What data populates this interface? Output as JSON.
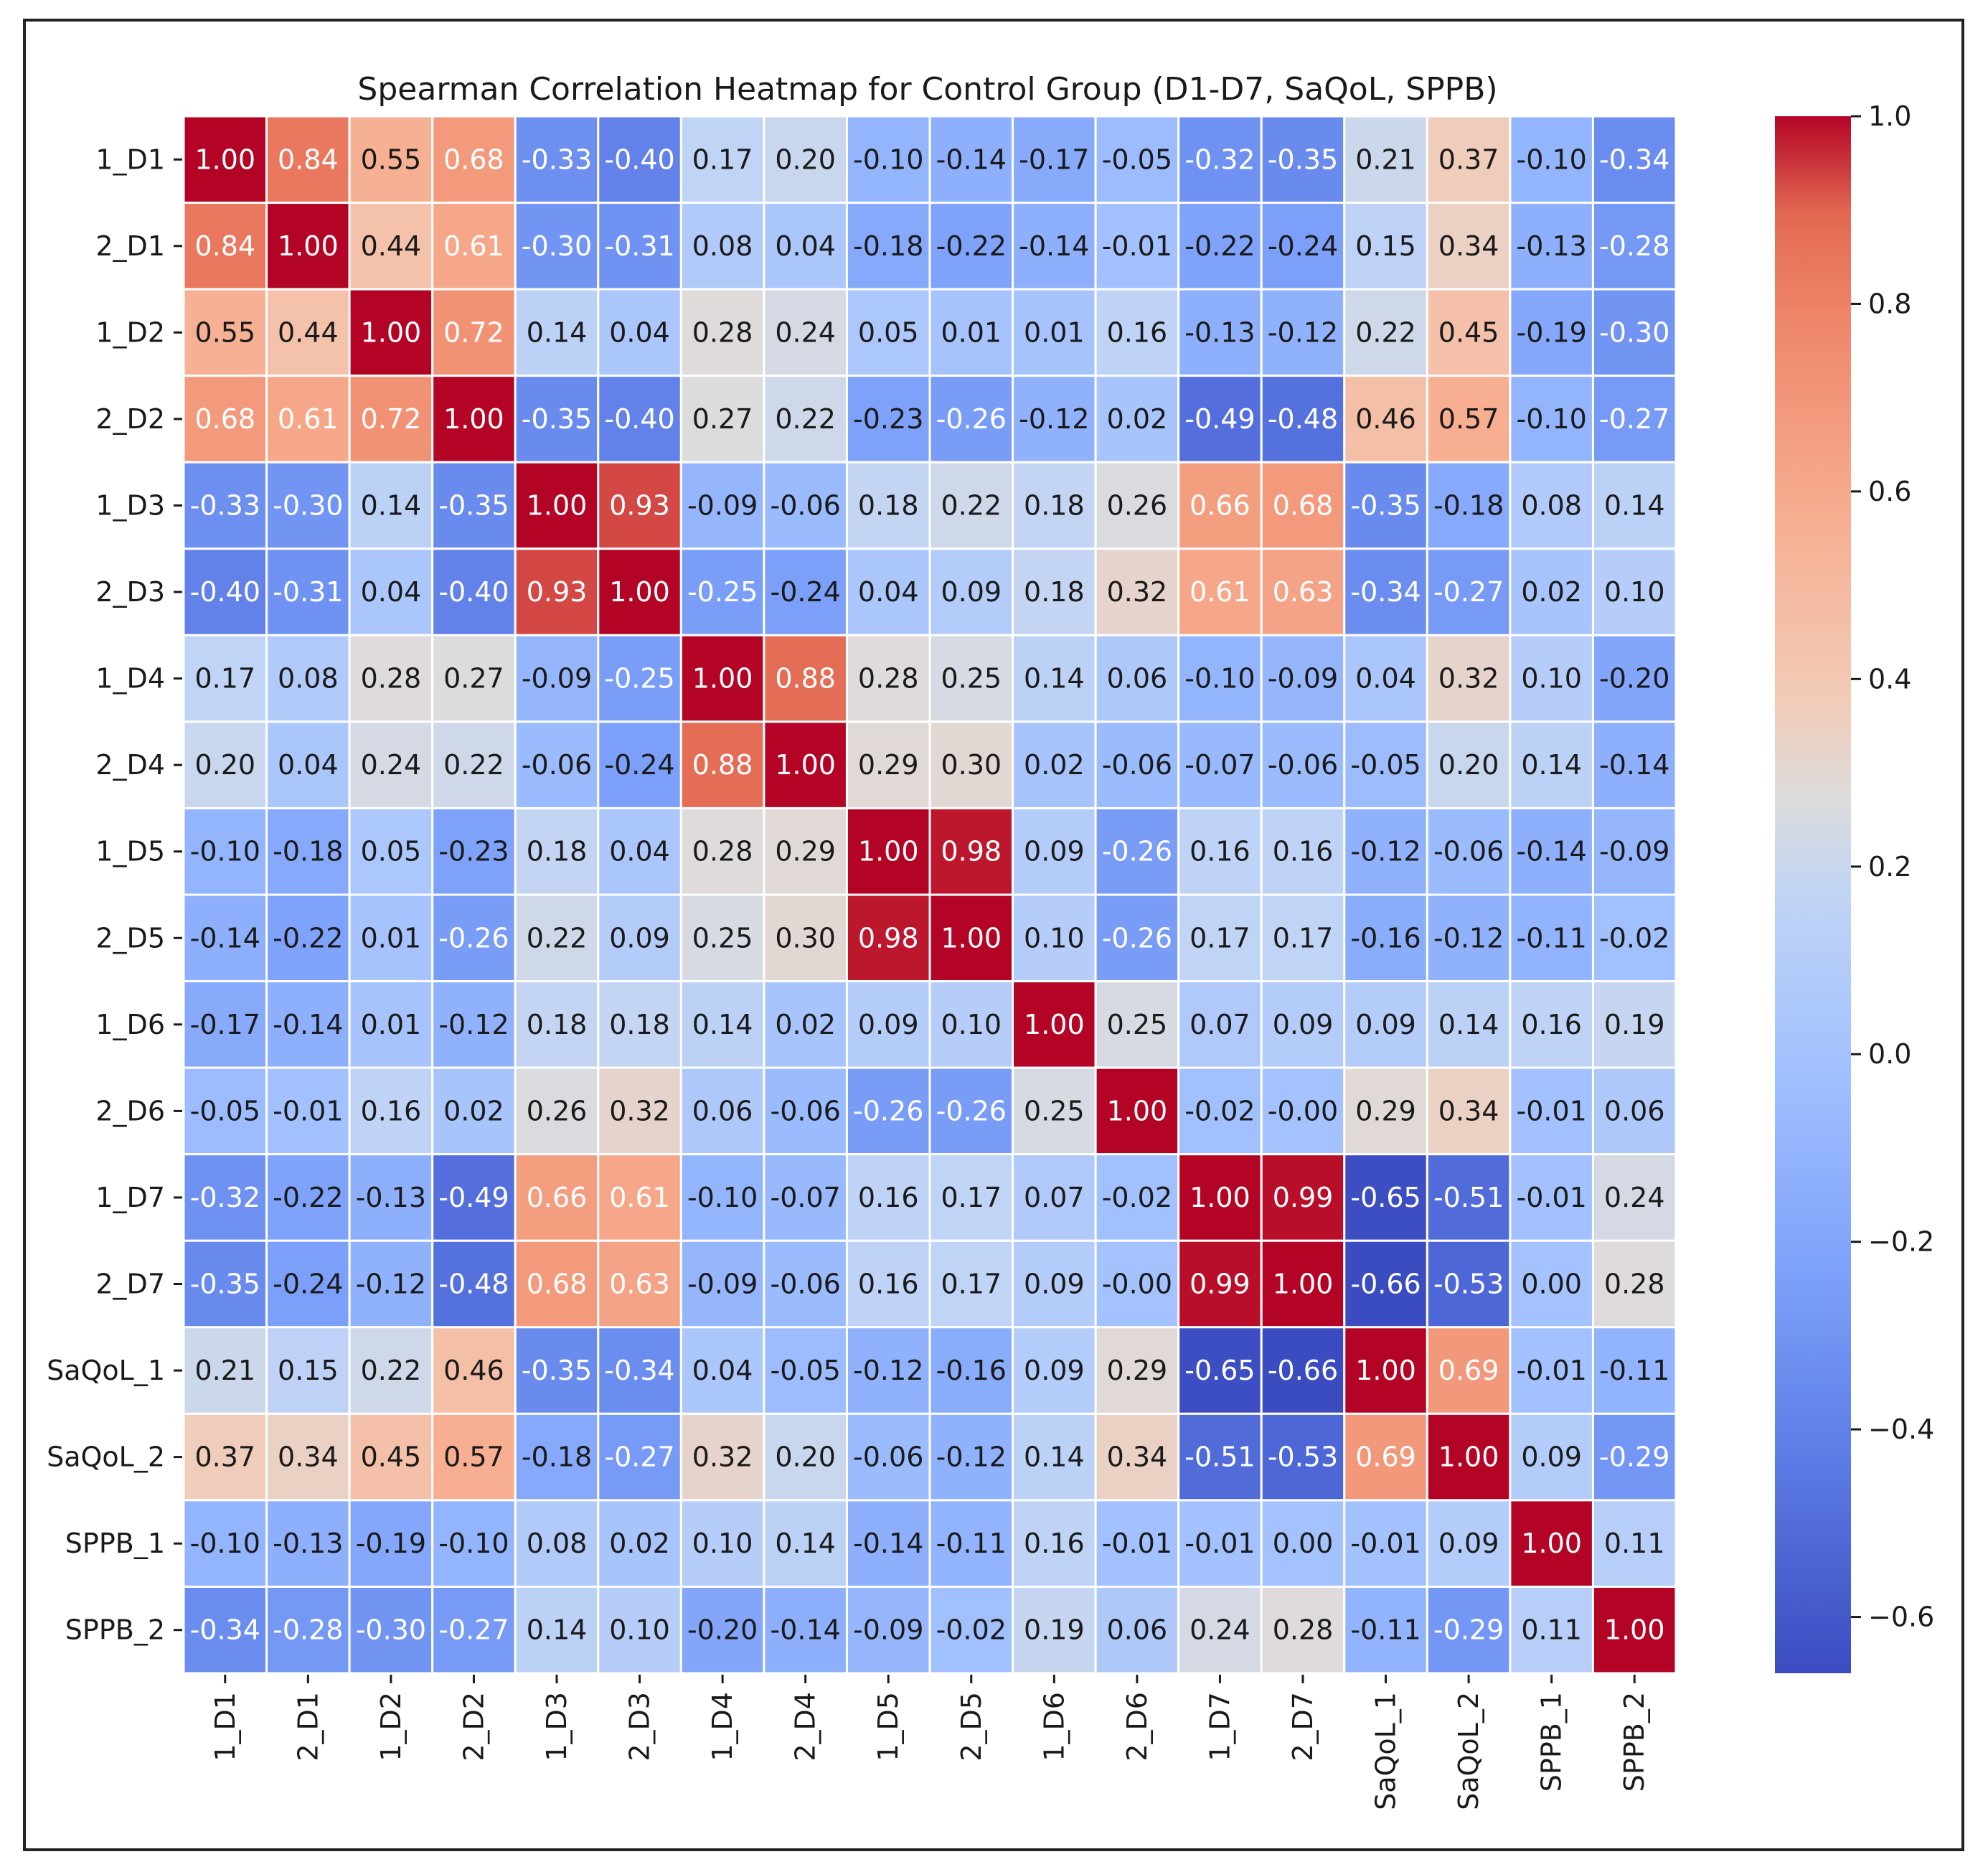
{
  "chart_data": {
    "type": "heatmap",
    "title": "Spearman Correlation Heatmap for Control Group (D1-D7, SaQoL, SPPB)",
    "rows": [
      "1_D1",
      "2_D1",
      "1_D2",
      "2_D2",
      "1_D3",
      "2_D3",
      "1_D4",
      "2_D4",
      "1_D5",
      "2_D5",
      "1_D6",
      "2_D6",
      "1_D7",
      "2_D7",
      "SaQoL_1",
      "SaQoL_2",
      "SPPB_1",
      "SPPB_2"
    ],
    "columns": [
      "1_D1",
      "2_D1",
      "1_D2",
      "2_D2",
      "1_D3",
      "2_D3",
      "1_D4",
      "2_D4",
      "1_D5",
      "2_D5",
      "1_D6",
      "2_D6",
      "1_D7",
      "2_D7",
      "SaQoL_1",
      "SaQoL_2",
      "SPPB_1",
      "SPPB_2"
    ],
    "values": [
      [
        "1.00",
        "0.84",
        "0.55",
        "0.68",
        "-0.33",
        "-0.40",
        "0.17",
        "0.20",
        "-0.10",
        "-0.14",
        "-0.17",
        "-0.05",
        "-0.32",
        "-0.35",
        "0.21",
        "0.37",
        "-0.10",
        "-0.34"
      ],
      [
        "0.84",
        "1.00",
        "0.44",
        "0.61",
        "-0.30",
        "-0.31",
        "0.08",
        "0.04",
        "-0.18",
        "-0.22",
        "-0.14",
        "-0.01",
        "-0.22",
        "-0.24",
        "0.15",
        "0.34",
        "-0.13",
        "-0.28"
      ],
      [
        "0.55",
        "0.44",
        "1.00",
        "0.72",
        "0.14",
        "0.04",
        "0.28",
        "0.24",
        "0.05",
        "0.01",
        "0.01",
        "0.16",
        "-0.13",
        "-0.12",
        "0.22",
        "0.45",
        "-0.19",
        "-0.30"
      ],
      [
        "0.68",
        "0.61",
        "0.72",
        "1.00",
        "-0.35",
        "-0.40",
        "0.27",
        "0.22",
        "-0.23",
        "-0.26",
        "-0.12",
        "0.02",
        "-0.49",
        "-0.48",
        "0.46",
        "0.57",
        "-0.10",
        "-0.27"
      ],
      [
        "-0.33",
        "-0.30",
        "0.14",
        "-0.35",
        "1.00",
        "0.93",
        "-0.09",
        "-0.06",
        "0.18",
        "0.22",
        "0.18",
        "0.26",
        "0.66",
        "0.68",
        "-0.35",
        "-0.18",
        "0.08",
        "0.14"
      ],
      [
        "-0.40",
        "-0.31",
        "0.04",
        "-0.40",
        "0.93",
        "1.00",
        "-0.25",
        "-0.24",
        "0.04",
        "0.09",
        "0.18",
        "0.32",
        "0.61",
        "0.63",
        "-0.34",
        "-0.27",
        "0.02",
        "0.10"
      ],
      [
        "0.17",
        "0.08",
        "0.28",
        "0.27",
        "-0.09",
        "-0.25",
        "1.00",
        "0.88",
        "0.28",
        "0.25",
        "0.14",
        "0.06",
        "-0.10",
        "-0.09",
        "0.04",
        "0.32",
        "0.10",
        "-0.20"
      ],
      [
        "0.20",
        "0.04",
        "0.24",
        "0.22",
        "-0.06",
        "-0.24",
        "0.88",
        "1.00",
        "0.29",
        "0.30",
        "0.02",
        "-0.06",
        "-0.07",
        "-0.06",
        "-0.05",
        "0.20",
        "0.14",
        "-0.14"
      ],
      [
        "-0.10",
        "-0.18",
        "0.05",
        "-0.23",
        "0.18",
        "0.04",
        "0.28",
        "0.29",
        "1.00",
        "0.98",
        "0.09",
        "-0.26",
        "0.16",
        "0.16",
        "-0.12",
        "-0.06",
        "-0.14",
        "-0.09"
      ],
      [
        "-0.14",
        "-0.22",
        "0.01",
        "-0.26",
        "0.22",
        "0.09",
        "0.25",
        "0.30",
        "0.98",
        "1.00",
        "0.10",
        "-0.26",
        "0.17",
        "0.17",
        "-0.16",
        "-0.12",
        "-0.11",
        "-0.02"
      ],
      [
        "-0.17",
        "-0.14",
        "0.01",
        "-0.12",
        "0.18",
        "0.18",
        "0.14",
        "0.02",
        "0.09",
        "0.10",
        "1.00",
        "0.25",
        "0.07",
        "0.09",
        "0.09",
        "0.14",
        "0.16",
        "0.19"
      ],
      [
        "-0.05",
        "-0.01",
        "0.16",
        "0.02",
        "0.26",
        "0.32",
        "0.06",
        "-0.06",
        "-0.26",
        "-0.26",
        "0.25",
        "1.00",
        "-0.02",
        "-0.00",
        "0.29",
        "0.34",
        "-0.01",
        "0.06"
      ],
      [
        "-0.32",
        "-0.22",
        "-0.13",
        "-0.49",
        "0.66",
        "0.61",
        "-0.10",
        "-0.07",
        "0.16",
        "0.17",
        "0.07",
        "-0.02",
        "1.00",
        "0.99",
        "-0.65",
        "-0.51",
        "-0.01",
        "0.24"
      ],
      [
        "-0.35",
        "-0.24",
        "-0.12",
        "-0.48",
        "0.68",
        "0.63",
        "-0.09",
        "-0.06",
        "0.16",
        "0.17",
        "0.09",
        "-0.00",
        "0.99",
        "1.00",
        "-0.66",
        "-0.53",
        "0.00",
        "0.28"
      ],
      [
        "0.21",
        "0.15",
        "0.22",
        "0.46",
        "-0.35",
        "-0.34",
        "0.04",
        "-0.05",
        "-0.12",
        "-0.16",
        "0.09",
        "0.29",
        "-0.65",
        "-0.66",
        "1.00",
        "0.69",
        "-0.01",
        "-0.11"
      ],
      [
        "0.37",
        "0.34",
        "0.45",
        "0.57",
        "-0.18",
        "-0.27",
        "0.32",
        "0.20",
        "-0.06",
        "-0.12",
        "0.14",
        "0.34",
        "-0.51",
        "-0.53",
        "0.69",
        "1.00",
        "0.09",
        "-0.29"
      ],
      [
        "-0.10",
        "-0.13",
        "-0.19",
        "-0.10",
        "0.08",
        "0.02",
        "0.10",
        "0.14",
        "-0.14",
        "-0.11",
        "0.16",
        "-0.01",
        "-0.01",
        "0.00",
        "-0.01",
        "0.09",
        "1.00",
        "0.11"
      ],
      [
        "-0.34",
        "-0.28",
        "-0.30",
        "-0.27",
        "0.14",
        "0.10",
        "-0.20",
        "-0.14",
        "-0.09",
        "-0.02",
        "0.19",
        "0.06",
        "0.24",
        "0.28",
        "-0.11",
        "-0.29",
        "0.11",
        "1.00"
      ]
    ],
    "colorbar": {
      "colormap": "coolwarm",
      "range": [
        -0.66,
        1.0
      ],
      "ticks": [
        1.0,
        0.8,
        0.6,
        0.4,
        0.2,
        0.0,
        -0.2,
        -0.4,
        -0.6
      ],
      "tick_labels": [
        "1.0",
        "0.8",
        "0.6",
        "0.4",
        "0.2",
        "0.0",
        "−0.2",
        "−0.4",
        "−0.6"
      ]
    }
  }
}
